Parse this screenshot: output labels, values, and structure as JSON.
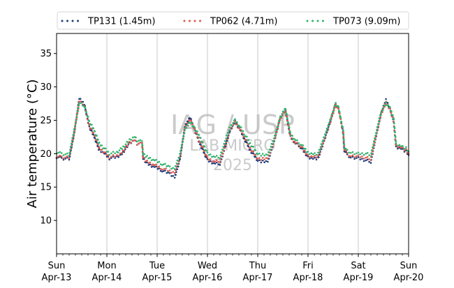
{
  "chart_data": {
    "type": "line",
    "title": "",
    "ylabel": "Air temperature (°C)",
    "xlabel": "",
    "ylim": [
      5,
      38
    ],
    "xlim": [
      0,
      7
    ],
    "yticks": [
      10,
      15,
      20,
      25,
      30,
      35
    ],
    "xticks": [
      {
        "x": 0,
        "day": "Sun",
        "date": "Apr-13"
      },
      {
        "x": 1,
        "day": "Mon",
        "date": "Apr-14"
      },
      {
        "x": 2,
        "day": "Tue",
        "date": "Apr-15"
      },
      {
        "x": 3,
        "day": "Wed",
        "date": "Apr-16"
      },
      {
        "x": 4,
        "day": "Thu",
        "date": "Apr-17"
      },
      {
        "x": 5,
        "day": "Fri",
        "date": "Apr-18"
      },
      {
        "x": 6,
        "day": "Sat",
        "date": "Apr-19"
      },
      {
        "x": 7,
        "day": "Sun",
        "date": "Apr-20"
      }
    ],
    "grid": {
      "x_major": true,
      "y": false
    },
    "legend_position": "top",
    "watermark": [
      "IAG / USP",
      "LAB MICRO",
      "2025"
    ],
    "series": [
      {
        "name": "TP131 (1.45m)",
        "color": "#1f3b7a",
        "x": [
          0,
          0.1,
          0.25,
          0.35,
          0.45,
          0.55,
          0.65,
          0.75,
          0.85,
          0.95,
          1.05,
          1.2,
          1.3,
          1.45,
          1.55,
          1.6,
          1.7,
          1.72,
          1.8,
          1.95,
          2.1,
          2.25,
          2.35,
          2.45,
          2.55,
          2.65,
          2.75,
          2.85,
          3.0,
          3.15,
          3.25,
          3.35,
          3.45,
          3.55,
          3.65,
          3.75,
          3.85,
          4.0,
          4.1,
          4.2,
          4.35,
          4.45,
          4.55,
          4.65,
          4.75,
          4.85,
          5.0,
          5.1,
          5.2,
          5.3,
          5.45,
          5.55,
          5.6,
          5.65,
          5.7,
          5.72,
          5.78,
          5.85,
          6.0,
          6.15,
          6.25,
          6.35,
          6.45,
          6.55,
          6.62,
          6.7,
          6.75,
          6.85,
          6.95,
          7.0
        ],
        "y": [
          19.5,
          19.3,
          19.2,
          23.0,
          28.2,
          27.5,
          24.0,
          22.5,
          20.5,
          20.0,
          19.3,
          19.5,
          20.0,
          21.5,
          22.0,
          21.5,
          21.5,
          19.3,
          18.5,
          18.0,
          17.5,
          17.0,
          16.5,
          19.0,
          24.0,
          25.5,
          23.5,
          21.5,
          19.0,
          18.5,
          18.5,
          21.0,
          23.5,
          24.8,
          23.5,
          22.0,
          20.5,
          19.0,
          18.8,
          18.8,
          22.5,
          25.5,
          26.5,
          22.5,
          21.5,
          21.0,
          19.5,
          19.3,
          19.3,
          21.5,
          25.0,
          27.5,
          27.0,
          25.0,
          23.0,
          20.5,
          19.8,
          19.5,
          19.3,
          19.0,
          18.8,
          22.5,
          26.0,
          28.0,
          27.0,
          25.0,
          21.0,
          20.8,
          20.3,
          19.8
        ]
      },
      {
        "name": "TP062 (4.71m)",
        "color": "#d9574d",
        "x": [
          0,
          0.1,
          0.25,
          0.35,
          0.45,
          0.55,
          0.65,
          0.75,
          0.85,
          0.95,
          1.05,
          1.2,
          1.3,
          1.45,
          1.55,
          1.6,
          1.7,
          1.72,
          1.8,
          1.95,
          2.1,
          2.25,
          2.35,
          2.45,
          2.55,
          2.65,
          2.75,
          2.85,
          3.0,
          3.15,
          3.25,
          3.35,
          3.45,
          3.55,
          3.65,
          3.75,
          3.85,
          4.0,
          4.1,
          4.2,
          4.35,
          4.45,
          4.55,
          4.65,
          4.75,
          4.85,
          5.0,
          5.1,
          5.2,
          5.3,
          5.45,
          5.55,
          5.6,
          5.65,
          5.7,
          5.72,
          5.78,
          5.85,
          6.0,
          6.15,
          6.25,
          6.35,
          6.45,
          6.55,
          6.62,
          6.7,
          6.75,
          6.85,
          6.95,
          7.0
        ],
        "y": [
          19.6,
          19.5,
          19.4,
          23.2,
          27.8,
          27.3,
          24.2,
          22.8,
          20.8,
          20.2,
          19.5,
          19.7,
          20.2,
          21.6,
          22.0,
          21.5,
          21.5,
          19.5,
          18.8,
          18.3,
          17.8,
          17.4,
          17.2,
          19.3,
          23.8,
          25.2,
          23.6,
          21.8,
          19.3,
          18.8,
          18.9,
          21.2,
          23.6,
          24.7,
          23.6,
          22.3,
          20.8,
          19.3,
          19.2,
          19.3,
          22.6,
          25.3,
          26.4,
          22.6,
          21.6,
          21.2,
          19.7,
          19.6,
          19.6,
          21.6,
          24.9,
          27.3,
          26.9,
          25.0,
          23.2,
          20.8,
          20.0,
          19.7,
          19.6,
          19.4,
          19.2,
          22.6,
          25.9,
          27.6,
          26.8,
          25.0,
          21.2,
          21.0,
          20.5,
          20.0
        ]
      },
      {
        "name": "TP073 (9.09m)",
        "color": "#2fb36e",
        "x": [
          0,
          0.1,
          0.25,
          0.35,
          0.45,
          0.55,
          0.65,
          0.75,
          0.85,
          0.95,
          1.05,
          1.2,
          1.3,
          1.45,
          1.55,
          1.6,
          1.7,
          1.72,
          1.8,
          1.95,
          2.1,
          2.25,
          2.35,
          2.45,
          2.55,
          2.65,
          2.75,
          2.85,
          3.0,
          3.15,
          3.25,
          3.35,
          3.45,
          3.55,
          3.65,
          3.75,
          3.85,
          4.0,
          4.1,
          4.2,
          4.35,
          4.45,
          4.55,
          4.65,
          4.75,
          4.85,
          5.0,
          5.1,
          5.2,
          5.3,
          5.45,
          5.55,
          5.6,
          5.65,
          5.7,
          5.72,
          5.78,
          5.85,
          6.0,
          6.15,
          6.25,
          6.35,
          6.45,
          6.55,
          6.62,
          6.7,
          6.75,
          6.85,
          6.95,
          7.0
        ],
        "y": [
          20.2,
          20.0,
          19.8,
          23.5,
          27.5,
          27.2,
          24.8,
          23.5,
          21.5,
          20.8,
          20.0,
          20.2,
          20.8,
          22.0,
          22.5,
          22.0,
          21.8,
          20.0,
          19.5,
          19.0,
          18.5,
          18.0,
          17.8,
          19.8,
          23.5,
          24.8,
          23.8,
          22.5,
          20.0,
          19.5,
          19.5,
          21.8,
          24.0,
          25.0,
          24.0,
          22.8,
          21.5,
          20.0,
          19.8,
          19.8,
          22.8,
          25.5,
          26.8,
          23.0,
          22.0,
          21.5,
          20.2,
          20.0,
          20.0,
          22.0,
          25.2,
          27.5,
          27.2,
          25.2,
          23.5,
          21.0,
          20.5,
          20.2,
          20.0,
          20.0,
          19.8,
          23.0,
          26.2,
          27.5,
          27.0,
          25.5,
          21.5,
          21.2,
          20.8,
          20.3
        ]
      }
    ]
  }
}
